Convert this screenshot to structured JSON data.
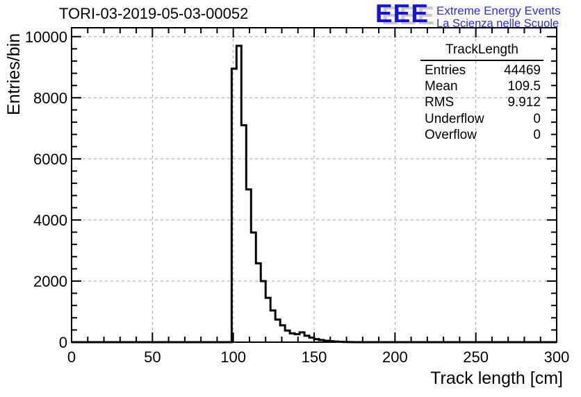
{
  "page": {
    "title": "TORI-03-2019-05-03-00052"
  },
  "logo": {
    "mark": "EEE",
    "line1": "Extreme Energy Events",
    "line2": "La Scienza nelle Scuole",
    "mark_color": "#1812d1",
    "text_color": "#2d2dd4",
    "shadow_color": "#c9c9c9"
  },
  "stats": {
    "header": "TrackLength",
    "rows": [
      {
        "label": "Entries",
        "value": "44469"
      },
      {
        "label": "Mean",
        "value": "109.5"
      },
      {
        "label": "RMS",
        "value": "9.912"
      },
      {
        "label": "Underflow",
        "value": "0"
      },
      {
        "label": "Overflow",
        "value": "0"
      }
    ]
  },
  "chart_data": {
    "type": "bar",
    "subtype": "step-histogram",
    "title": "TORI-03-2019-05-03-00052",
    "xlabel": "Track length [cm]",
    "ylabel": "Entries/bin",
    "xlim": [
      0,
      300
    ],
    "ylim": [
      0,
      10290
    ],
    "x_major_ticks": [
      0,
      50,
      100,
      150,
      200,
      250,
      300
    ],
    "x_minor_step": 10,
    "y_major_ticks": [
      0,
      2000,
      4000,
      6000,
      8000,
      10000
    ],
    "y_minor_step": 400,
    "grid": "dashed on major ticks",
    "grid_color": "#a2a2a2",
    "line_color": "#000000",
    "legend_position": "none",
    "bin_start": 99,
    "bin_width": 3,
    "bin_values": [
      8950,
      9700,
      7100,
      5000,
      3590,
      2580,
      2000,
      1450,
      1040,
      740,
      550,
      380,
      290,
      260,
      320,
      210,
      150,
      100,
      70,
      45,
      30,
      20,
      12,
      6,
      3,
      1
    ],
    "histogram_stats": {
      "name": "TrackLength",
      "entries": 44469,
      "mean": 109.5,
      "rms": 9.912,
      "underflow": 0,
      "overflow": 0
    }
  }
}
